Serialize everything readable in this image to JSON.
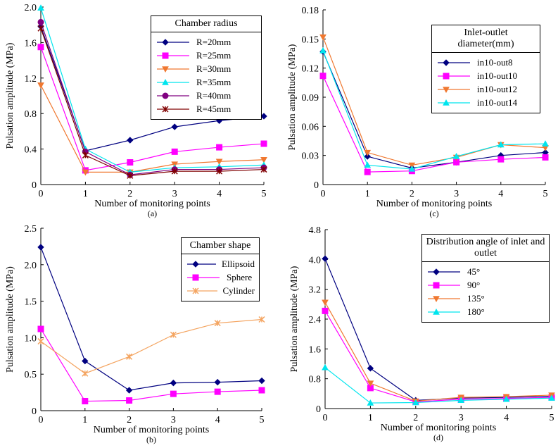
{
  "chart_data": [
    {
      "type": "line",
      "caption": "(a)",
      "xlabel": "Number of monitoring points",
      "ylabel": "Pulsation amplitude (MPa)",
      "legend_title": "Chamber radius",
      "legend": "upper right",
      "x": [
        0,
        1,
        2,
        3,
        4,
        5
      ],
      "xlim": [
        0,
        5
      ],
      "xticks": [
        0,
        1,
        2,
        3,
        4,
        5
      ],
      "ylim": [
        0,
        2
      ],
      "yticks": [
        0,
        0.4,
        0.8,
        1.2,
        1.6,
        {
          "value": 2,
          "label": "2.0"
        }
      ],
      "series": [
        {
          "name": "R=20mm",
          "color": "#000080",
          "marker": "diamond",
          "values": [
            1.78,
            0.38,
            0.5,
            0.65,
            0.72,
            0.77
          ]
        },
        {
          "name": "R=25mm",
          "color": "#ff00ff",
          "marker": "square",
          "values": [
            1.55,
            0.16,
            0.25,
            0.37,
            0.42,
            0.46
          ]
        },
        {
          "name": "R=30mm",
          "color": "#f07830",
          "marker": "triangle-down",
          "values": [
            1.12,
            0.14,
            0.14,
            0.23,
            0.26,
            0.28
          ]
        },
        {
          "name": "R=35mm",
          "color": "#00e5ee",
          "marker": "triangle",
          "values": [
            1.99,
            0.4,
            0.14,
            0.19,
            0.2,
            0.22
          ]
        },
        {
          "name": "R=40mm",
          "color": "#800080",
          "marker": "circle",
          "values": [
            1.83,
            0.37,
            0.11,
            0.17,
            0.17,
            0.19
          ]
        },
        {
          "name": "R=45mm",
          "color": "#800000",
          "marker": "star",
          "values": [
            1.76,
            0.33,
            0.1,
            0.15,
            0.15,
            0.17
          ]
        }
      ]
    },
    {
      "type": "line",
      "caption": "(c)",
      "xlabel": "Number of monitoring points",
      "ylabel": "Pulsation amplitude (MPa)",
      "legend_title": "Inlet-outlet diameter(mm)",
      "legend": "upper right",
      "x": [
        0,
        1,
        2,
        3,
        4,
        5
      ],
      "xlim": [
        0,
        5
      ],
      "xticks": [
        0,
        1,
        2,
        3,
        4,
        5
      ],
      "ylim": [
        0,
        0.18
      ],
      "yticks": [
        0,
        0.03,
        0.06,
        0.09,
        0.12,
        0.15,
        0.18
      ],
      "series": [
        {
          "name": "in10-out8",
          "color": "#000080",
          "marker": "diamond",
          "values": [
            0.137,
            0.029,
            0.017,
            0.023,
            0.03,
            0.033
          ]
        },
        {
          "name": "in10-out10",
          "color": "#ff00ff",
          "marker": "square",
          "values": [
            0.112,
            0.013,
            0.014,
            0.023,
            0.026,
            0.028
          ]
        },
        {
          "name": "in10-out12",
          "color": "#f07830",
          "marker": "triangle-down",
          "values": [
            0.152,
            0.033,
            0.02,
            0.028,
            0.041,
            0.038
          ]
        },
        {
          "name": "in10-out14",
          "color": "#00e5ee",
          "marker": "triangle",
          "values": [
            0.138,
            0.02,
            0.016,
            0.029,
            0.041,
            0.042
          ]
        }
      ]
    },
    {
      "type": "line",
      "caption": "(b)",
      "xlabel": "Number of monitoring points",
      "ylabel": "Pulsation amplitude (MPa)",
      "legend_title": "Chamber shape",
      "legend": "upper right",
      "x": [
        0,
        1,
        2,
        3,
        4,
        5
      ],
      "xlim": [
        0,
        5
      ],
      "xticks": [
        0,
        1,
        2,
        3,
        4,
        5
      ],
      "ylim": [
        0,
        2.5
      ],
      "yticks": [
        0,
        0.5,
        {
          "value": 1,
          "label": "1.0"
        },
        1.5,
        {
          "value": 2,
          "label": "2.0"
        },
        2.5
      ],
      "series": [
        {
          "name": "Ellipsoid",
          "color": "#000080",
          "marker": "diamond",
          "values": [
            2.24,
            0.68,
            0.28,
            0.38,
            0.39,
            0.41
          ]
        },
        {
          "name": "Sphere",
          "color": "#ff00ff",
          "marker": "square",
          "values": [
            1.12,
            0.13,
            0.14,
            0.23,
            0.26,
            0.28
          ]
        },
        {
          "name": "Cylinder",
          "color": "#f4a460",
          "marker": "star",
          "values": [
            0.95,
            0.51,
            0.74,
            1.04,
            1.2,
            1.25
          ]
        }
      ]
    },
    {
      "type": "line",
      "caption": "(d)",
      "xlabel": "Number of monitoring points",
      "ylabel": "Pulsation amplitude (MPa)",
      "legend_title": "Distribution angle of inlet and outlet",
      "legend": "upper right",
      "x": [
        0,
        1,
        2,
        3,
        4,
        5
      ],
      "xlim": [
        0,
        5
      ],
      "xticks": [
        0,
        1,
        2,
        3,
        4,
        5
      ],
      "ylim": [
        0,
        4.8
      ],
      "yticks": [
        0,
        0.8,
        1.6,
        2.4,
        3.2,
        {
          "value": 4,
          "label": "4.0"
        },
        4.8
      ],
      "series": [
        {
          "name": "45°",
          "color": "#000080",
          "marker": "diamond",
          "values": [
            4.02,
            1.08,
            0.22,
            0.28,
            0.3,
            0.33
          ]
        },
        {
          "name": "90°",
          "color": "#ff00ff",
          "marker": "square",
          "values": [
            2.62,
            0.55,
            0.18,
            0.25,
            0.27,
            0.3
          ]
        },
        {
          "name": "135°",
          "color": "#f07830",
          "marker": "triangle-down",
          "values": [
            2.85,
            0.68,
            0.2,
            0.3,
            0.32,
            0.36
          ]
        },
        {
          "name": "180°",
          "color": "#00e5ee",
          "marker": "triangle",
          "values": [
            1.1,
            0.15,
            0.16,
            0.22,
            0.25,
            0.28
          ]
        }
      ]
    }
  ]
}
